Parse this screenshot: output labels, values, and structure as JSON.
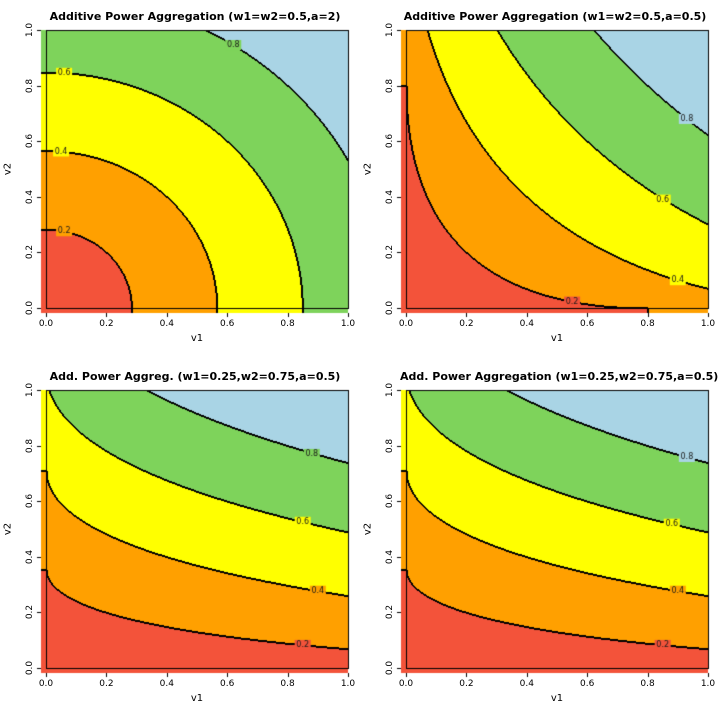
{
  "page": {
    "background": "#ffffff"
  },
  "palette": {
    "bands": [
      "#f3533a",
      "#ffa000",
      "#ffff00",
      "#7ed35b",
      "#a9d4e5"
    ],
    "contour_line": "#000000",
    "contour_label_color": "#1a1a1a"
  },
  "chart_data": {
    "type": "heatmap",
    "subtype": "filled-contour",
    "function": "f(v1,v2) = (w1*v1^a + w2*v2^a)^(1/a)",
    "x_range": [
      0,
      1
    ],
    "y_range": [
      0,
      1
    ],
    "band_breaks": [
      0,
      0.2,
      0.4,
      0.6,
      0.8,
      1.0
    ],
    "panels": [
      {
        "title": "Additive Power Aggregation (w1=w2=0.5,a=2)",
        "xlabel": "v1",
        "ylabel": "v2",
        "w1": 0.5,
        "w2": 0.5,
        "a": 2,
        "xticks": [
          "0.0",
          "0.2",
          "0.4",
          "0.6",
          "0.8",
          "1.0"
        ],
        "yticks": [
          "0.0",
          "0.2",
          "0.4",
          "0.6",
          "0.8",
          "1.0"
        ],
        "contour_levels": [
          0.2,
          0.4,
          0.6,
          0.8
        ],
        "contour_labels": [
          {
            "text": "0.2",
            "v1": 0.06,
            "v2": 0.276
          },
          {
            "text": "0.4",
            "v1": 0.05,
            "v2": 0.563
          },
          {
            "text": "0.6",
            "v1": 0.06,
            "v2": 0.846
          },
          {
            "text": "0.8",
            "v1": 0.62,
            "v2": 0.946
          }
        ]
      },
      {
        "title": "Additive Power Aggregation (w1=w2=0.5,a=0.5)",
        "xlabel": "v1",
        "ylabel": "v2",
        "w1": 0.5,
        "w2": 0.5,
        "a": 0.5,
        "xticks": [
          "0.0",
          "0.2",
          "0.4",
          "0.6",
          "0.8",
          "1.0"
        ],
        "yticks": [
          "0.0",
          "0.2",
          "0.4",
          "0.6",
          "0.8",
          "1.0"
        ],
        "contour_levels": [
          0.2,
          0.4,
          0.6,
          0.8
        ],
        "contour_labels": [
          {
            "text": "0.2",
            "v1": 0.55,
            "v2": 0.023
          },
          {
            "text": "0.4",
            "v1": 0.9,
            "v2": 0.1
          },
          {
            "text": "0.6",
            "v1": 0.85,
            "v2": 0.39
          },
          {
            "text": "0.8",
            "v1": 0.93,
            "v2": 0.68
          }
        ]
      },
      {
        "title": "Add. Power Aggreg. (w1=0.25,w2=0.75,a=0.5)",
        "xlabel": "v1",
        "ylabel": "v2",
        "w1": 0.25,
        "w2": 0.75,
        "a": 0.5,
        "xticks": [
          "0.0",
          "0.2",
          "0.4",
          "0.6",
          "0.8",
          "1.0"
        ],
        "yticks": [
          "0.0",
          "0.2",
          "0.4",
          "0.6",
          "0.8",
          "1.0"
        ],
        "contour_levels": [
          0.2,
          0.4,
          0.6,
          0.8
        ],
        "contour_labels": [
          {
            "text": "0.2",
            "v1": 0.85,
            "v2": 0.083
          },
          {
            "text": "0.4",
            "v1": 0.9,
            "v2": 0.278
          },
          {
            "text": "0.6",
            "v1": 0.85,
            "v2": 0.526
          },
          {
            "text": "0.8",
            "v1": 0.88,
            "v2": 0.77
          }
        ]
      },
      {
        "title": "Add. Power Aggregation (w1=0.25,w2=0.75,a=0.5)",
        "xlabel": "v1",
        "ylabel": "v2",
        "w1": 0.25,
        "w2": 0.75,
        "a": 0.5,
        "xticks": [
          "0.0",
          "0.2",
          "0.4",
          "0.6",
          "0.8",
          "1.0"
        ],
        "yticks": [
          "0.0",
          "0.2",
          "0.4",
          "0.6",
          "0.8",
          "1.0"
        ],
        "contour_levels": [
          0.2,
          0.4,
          0.6,
          0.8
        ],
        "contour_labels": [
          {
            "text": "0.2",
            "v1": 0.85,
            "v2": 0.083
          },
          {
            "text": "0.4",
            "v1": 0.9,
            "v2": 0.278
          },
          {
            "text": "0.6",
            "v1": 0.88,
            "v2": 0.519
          },
          {
            "text": "0.8",
            "v1": 0.93,
            "v2": 0.759
          }
        ]
      }
    ]
  }
}
